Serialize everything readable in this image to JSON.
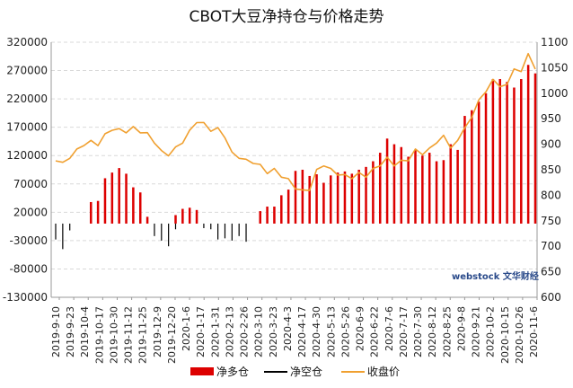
{
  "chart_data": {
    "type": "bar",
    "title": "CBOT大豆净持仓与价格走势",
    "watermark": "webstock 文华财经",
    "y_left": {
      "min": -130000,
      "max": 320000,
      "ticks": [
        "320000",
        "270000",
        "220000",
        "170000",
        "120000",
        "70000",
        "20000",
        "-30000",
        "-80000",
        "-130000"
      ]
    },
    "y_right": {
      "min": 600,
      "max": 1100,
      "ticks": [
        "1100",
        "1050",
        "1000",
        "950",
        "900",
        "850",
        "800",
        "750",
        "700",
        "650",
        "600"
      ]
    },
    "x_dates": [
      "2019-9-10",
      "2019-9-23",
      "2019-10-4",
      "2019-10-17",
      "2019-10-30",
      "2019-11-12",
      "2019-11-25",
      "2019-12-9",
      "2019-12-20",
      "2020-1-6",
      "2020-1-17",
      "2020-1-31",
      "2020-2-13",
      "2020-2-26",
      "2020-3-10",
      "2020-3-23",
      "2020-4-3",
      "2020-4-17",
      "2020-4-30",
      "2020-5-13",
      "2020-5-26",
      "2020-6-9",
      "2020-6-22",
      "2020-7-6",
      "2020-7-17",
      "2020-7-30",
      "2020-8-12",
      "2020-8-25",
      "2020-9-8",
      "2020-9-21",
      "2020-10-2",
      "2020-10-15",
      "2020-10-26",
      "2020-11-6"
    ],
    "legend": [
      {
        "name": "净多仓",
        "color": "#dd0000"
      },
      {
        "name": "净空仓",
        "color": "#000000"
      },
      {
        "name": "收盘价",
        "color": "#f0a030"
      }
    ],
    "series_net_long": {
      "name": "净多仓",
      "values": [
        0,
        0,
        0,
        0,
        0,
        38000,
        40000,
        80000,
        90000,
        98000,
        88000,
        64000,
        55000,
        12000,
        0,
        0,
        0,
        15000,
        26000,
        28000,
        24000,
        0,
        0,
        0,
        0,
        0,
        0,
        0,
        0,
        22000,
        30000,
        30000,
        50000,
        60000,
        93000,
        95000,
        84000,
        87000,
        72000,
        85000,
        90000,
        92000,
        88000,
        95000,
        100000,
        110000,
        125000,
        150000,
        140000,
        135000,
        118000,
        130000,
        120000,
        125000,
        110000,
        112000,
        140000,
        130000,
        190000,
        200000,
        215000,
        230000,
        255000,
        255000,
        250000,
        240000,
        255000,
        280000,
        265000
      ]
    },
    "series_net_short": {
      "name": "净空仓",
      "values": [
        -28000,
        -45000,
        -12000,
        0,
        0,
        0,
        0,
        0,
        0,
        0,
        0,
        0,
        0,
        0,
        -22000,
        -30000,
        -40000,
        -10000,
        0,
        0,
        0,
        -8000,
        -10000,
        -28000,
        -26000,
        -30000,
        -22000,
        -32000,
        0,
        0,
        0,
        0,
        0,
        0,
        0,
        0,
        0,
        0,
        0,
        0,
        0,
        0,
        0,
        0,
        0,
        0,
        0,
        0,
        0,
        0,
        0,
        0,
        0,
        0,
        0,
        0,
        0,
        0,
        0,
        0,
        0,
        0,
        0,
        0,
        0,
        0,
        0,
        0,
        0
      ]
    },
    "series_close": {
      "name": "收盘价",
      "values": [
        870,
        862,
        875,
        888,
        900,
        905,
        900,
        918,
        930,
        928,
        925,
        932,
        925,
        920,
        905,
        885,
        880,
        892,
        905,
        925,
        945,
        940,
        928,
        930,
        915,
        882,
        875,
        868,
        865,
        858,
        845,
        850,
        838,
        830,
        815,
        808,
        812,
        848,
        860,
        850,
        842,
        838,
        835,
        842,
        838,
        850,
        860,
        872,
        860,
        866,
        870,
        888,
        882,
        890,
        905,
        915,
        895,
        905,
        935,
        950,
        990,
        1000,
        1030,
        1010,
        1020,
        1045,
        1045,
        1075,
        1050
      ]
    }
  }
}
